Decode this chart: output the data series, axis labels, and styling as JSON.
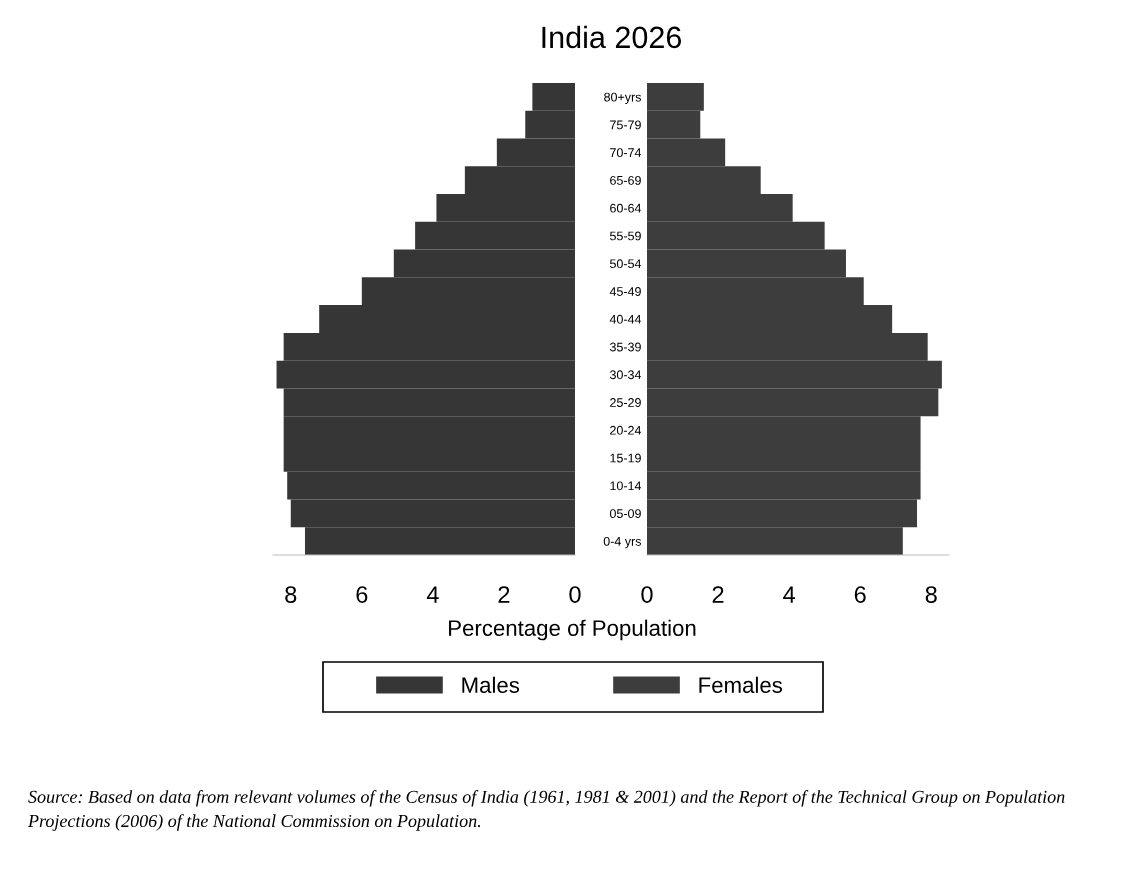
{
  "chart_data": [
    {
      "type": "bar",
      "orientation": "horizontal",
      "title": "India 2026",
      "xlabel": "Percentage of Population",
      "legend": "bottom",
      "tick_labels": "x",
      "annotations": [
        "Source: Based on data from relevant volumes of the Census of India (1961, 1981 & 2001) and the Report of the Technical Group on Population Projections (2006) of the National Commission on Population."
      ],
      "xlim": [
        8.5,
        0
      ],
      "xticks": [
        8,
        6,
        4,
        2,
        0
      ],
      "series": [
        {
          "name": "Males",
          "color": "#363636",
          "values": [
            1.2,
            1.4,
            2.2,
            3.1,
            3.9,
            4.5,
            5.1,
            6.0,
            7.2,
            8.2,
            8.4,
            8.2,
            8.2,
            8.2,
            8.1,
            8.0,
            7.6
          ]
        }
      ]
    },
    {
      "type": "bar",
      "orientation": "horizontal",
      "legend": "bottom",
      "categories": [
        "80+yrs",
        "75-79",
        "70-74",
        "65-69",
        "60-64",
        "55-59",
        "50-54",
        "45-49",
        "40-44",
        "35-39",
        "30-34",
        "25-29",
        "20-24",
        "15-19",
        "10-14",
        "05-09",
        "0-4 yrs"
      ],
      "xlim": [
        0,
        8.5
      ],
      "xticks": [
        0,
        2,
        4,
        6,
        8
      ],
      "series": [
        {
          "name": "Females",
          "color": "#3d3d3d",
          "values": [
            1.6,
            1.5,
            2.2,
            3.2,
            4.1,
            5.0,
            5.6,
            6.1,
            6.9,
            7.9,
            8.3,
            8.2,
            7.7,
            7.7,
            7.7,
            7.6,
            7.2
          ]
        }
      ]
    }
  ]
}
